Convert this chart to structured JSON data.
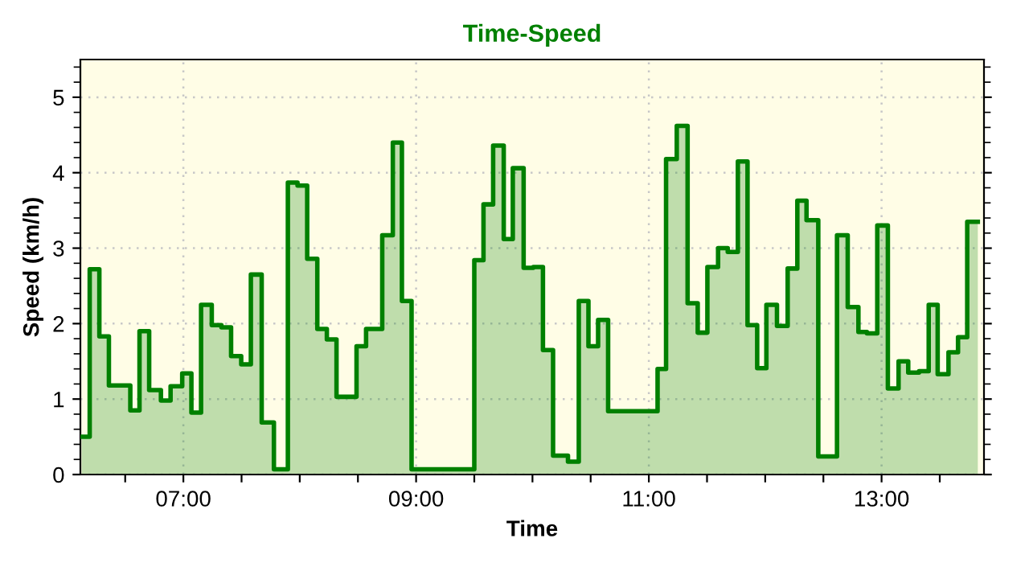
{
  "chart_data": {
    "type": "area",
    "title": "Time-Speed",
    "xlabel": "Time",
    "ylabel": "Speed (km/h)",
    "x": [
      6.126,
      6.195,
      6.195,
      6.278,
      6.278,
      6.36,
      6.36,
      6.544,
      6.544,
      6.623,
      6.623,
      6.706,
      6.706,
      6.807,
      6.807,
      6.89,
      6.89,
      6.99,
      6.99,
      7.069,
      7.069,
      7.152,
      7.152,
      7.244,
      7.244,
      7.327,
      7.327,
      7.41,
      7.41,
      7.497,
      7.497,
      7.58,
      7.58,
      7.673,
      7.673,
      7.778,
      7.778,
      7.898,
      7.898,
      7.981,
      7.981,
      8.064,
      8.064,
      8.151,
      8.151,
      8.233,
      8.233,
      8.316,
      8.316,
      8.488,
      8.488,
      8.57,
      8.57,
      8.709,
      8.709,
      8.8,
      8.8,
      8.878,
      8.878,
      8.961,
      8.961,
      9.5,
      9.5,
      9.579,
      9.579,
      9.662,
      9.662,
      9.753,
      9.753,
      9.831,
      9.831,
      9.924,
      9.924,
      10.007,
      10.007,
      10.09,
      10.09,
      10.177,
      10.177,
      10.305,
      10.305,
      10.398,
      10.398,
      10.481,
      10.481,
      10.564,
      10.564,
      10.65,
      10.65,
      11.075,
      11.075,
      11.148,
      11.148,
      11.24,
      11.24,
      11.333,
      11.333,
      11.42,
      11.42,
      11.503,
      11.503,
      11.595,
      11.595,
      11.678,
      11.678,
      11.765,
      11.765,
      11.848,
      11.848,
      11.931,
      11.931,
      12.01,
      12.01,
      12.101,
      12.101,
      12.193,
      12.193,
      12.276,
      12.276,
      12.355,
      12.355,
      12.456,
      12.456,
      12.617,
      12.617,
      12.709,
      12.709,
      12.801,
      12.801,
      12.874,
      12.874,
      12.963,
      12.963,
      13.054,
      13.054,
      13.146,
      13.146,
      13.229,
      13.229,
      13.322,
      13.322,
      13.405,
      13.405,
      13.482,
      13.482,
      13.575,
      13.575,
      13.657,
      13.657,
      13.736,
      13.736,
      13.827
    ],
    "series": [
      {
        "color": "#008000",
        "values": [
          0.5,
          0.5,
          2.72,
          2.72,
          1.83,
          1.83,
          1.18,
          1.18,
          0.85,
          0.85,
          1.9,
          1.9,
          1.12,
          1.12,
          0.98,
          0.98,
          1.17,
          1.17,
          1.34,
          1.34,
          0.82,
          0.82,
          2.25,
          2.25,
          1.98,
          1.98,
          1.95,
          1.95,
          1.57,
          1.57,
          1.46,
          1.46,
          2.65,
          2.65,
          0.69,
          0.69,
          0.07,
          0.07,
          3.87,
          3.87,
          3.83,
          3.83,
          2.86,
          2.86,
          1.93,
          1.93,
          1.79,
          1.79,
          1.03,
          1.03,
          1.7,
          1.7,
          1.93,
          1.93,
          3.17,
          3.17,
          4.4,
          4.4,
          2.3,
          2.3,
          0.07,
          0.07,
          2.84,
          2.84,
          3.58,
          3.58,
          4.36,
          4.36,
          3.12,
          3.12,
          4.06,
          4.06,
          2.74,
          2.74,
          2.75,
          2.75,
          1.65,
          1.65,
          0.25,
          0.25,
          0.17,
          0.17,
          2.3,
          2.3,
          1.7,
          1.7,
          2.05,
          2.05,
          0.84,
          0.84,
          1.4,
          1.4,
          4.18,
          4.18,
          4.62,
          4.62,
          2.27,
          2.27,
          1.88,
          1.88,
          2.75,
          2.75,
          3.0,
          3.0,
          2.95,
          2.95,
          4.15,
          4.15,
          1.98,
          1.98,
          1.41,
          1.41,
          2.25,
          2.25,
          1.97,
          1.97,
          2.73,
          2.73,
          3.63,
          3.63,
          3.37,
          3.37,
          0.24,
          0.24,
          3.17,
          3.17,
          2.22,
          2.22,
          1.89,
          1.89,
          1.87,
          1.87,
          3.3,
          3.3,
          1.14,
          1.14,
          1.5,
          1.5,
          1.35,
          1.35,
          1.37,
          1.37,
          2.25,
          2.25,
          1.33,
          1.33,
          1.62,
          1.62,
          1.82,
          1.82,
          3.35,
          3.35
        ]
      }
    ],
    "xlim": [
      6.115,
      13.88
    ],
    "ylim": [
      0,
      5.5
    ],
    "xticks": [
      {
        "value": 6.5,
        "label": null
      },
      {
        "value": 7,
        "label": "07:00"
      },
      {
        "value": 7.5,
        "label": null
      },
      {
        "value": 8,
        "label": null
      },
      {
        "value": 8.5,
        "label": null
      },
      {
        "value": 9,
        "label": "09:00"
      },
      {
        "value": 9.5,
        "label": null
      },
      {
        "value": 10,
        "label": null
      },
      {
        "value": 10.5,
        "label": null
      },
      {
        "value": 11,
        "label": "11:00"
      },
      {
        "value": 11.5,
        "label": null
      },
      {
        "value": 12,
        "label": null
      },
      {
        "value": 12.5,
        "label": null
      },
      {
        "value": 13,
        "label": "13:00"
      },
      {
        "value": 13.5,
        "label": null
      }
    ],
    "yticks": [
      0,
      1,
      2,
      3,
      4,
      5
    ],
    "grid": true,
    "line_style": "solid",
    "marker": "none"
  }
}
